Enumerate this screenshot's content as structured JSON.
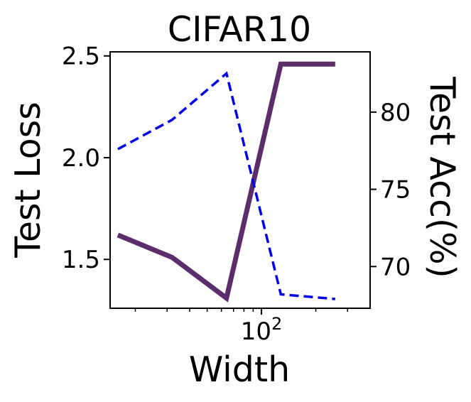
{
  "chart_data": {
    "type": "line",
    "title": "CIFAR10",
    "xlabel": "Width",
    "xscale": "log",
    "x": [
      16,
      32,
      64,
      128,
      256
    ],
    "xlim": [
      14.5,
      400
    ],
    "x_ticks": [
      {
        "base": "10",
        "exp": "2",
        "value": 100
      }
    ],
    "y_left": {
      "label": "Test Loss",
      "lim": [
        1.26,
        2.52
      ],
      "ticks": [
        "1.5",
        "2.0",
        "2.5"
      ]
    },
    "y_right": {
      "label": "Test Acc(%)",
      "lim": [
        67.3,
        83.9
      ],
      "ticks": [
        "70",
        "75",
        "80"
      ]
    },
    "series": [
      {
        "axis": "left",
        "values": [
          1.62,
          1.51,
          1.31,
          2.46,
          2.46
        ],
        "color": "#5c2d6b",
        "style": "solid"
      },
      {
        "axis": "right",
        "values": [
          77.6,
          79.5,
          82.5,
          68.2,
          67.9
        ],
        "color": "#0000e6",
        "style": "dashed"
      }
    ]
  }
}
